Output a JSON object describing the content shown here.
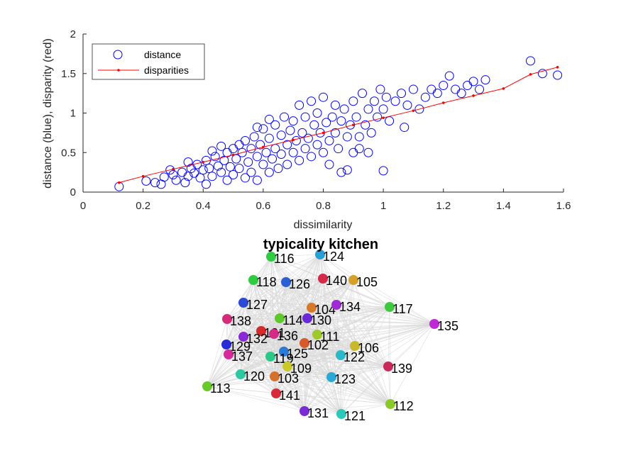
{
  "chart_data": [
    {
      "type": "scatter",
      "xlabel": "dissimilarity",
      "ylabel": "distance (blue), disparity (red)",
      "xlim": [
        0,
        1.6
      ],
      "ylim": [
        0,
        2
      ],
      "xticks": [
        "0",
        "0.2",
        "0.4",
        "0.6",
        "0.8",
        "1",
        "1.2",
        "1.4",
        "1.6"
      ],
      "yticks": [
        "0",
        "0.5",
        "1",
        "1.5",
        "2"
      ],
      "grid": false,
      "legend_position": "top-left",
      "series": [
        {
          "name": "distance",
          "color": "#0000ff",
          "marker": "open-circle",
          "points": [
            [
              0.12,
              0.07
            ],
            [
              0.21,
              0.14
            ],
            [
              0.24,
              0.12
            ],
            [
              0.26,
              0.1
            ],
            [
              0.27,
              0.19
            ],
            [
              0.29,
              0.28
            ],
            [
              0.3,
              0.22
            ],
            [
              0.31,
              0.15
            ],
            [
              0.33,
              0.25
            ],
            [
              0.34,
              0.12
            ],
            [
              0.35,
              0.2
            ],
            [
              0.36,
              0.3
            ],
            [
              0.37,
              0.24
            ],
            [
              0.38,
              0.35
            ],
            [
              0.39,
              0.18
            ],
            [
              0.4,
              0.28
            ],
            [
              0.41,
              0.1
            ],
            [
              0.41,
              0.4
            ],
            [
              0.42,
              0.3
            ],
            [
              0.43,
              0.2
            ],
            [
              0.43,
              0.52
            ],
            [
              0.44,
              0.45
            ],
            [
              0.45,
              0.33
            ],
            [
              0.46,
              0.25
            ],
            [
              0.47,
              0.4
            ],
            [
              0.48,
              0.5
            ],
            [
              0.48,
              0.15
            ],
            [
              0.49,
              0.32
            ],
            [
              0.5,
              0.55
            ],
            [
              0.5,
              0.22
            ],
            [
              0.51,
              0.42
            ],
            [
              0.52,
              0.6
            ],
            [
              0.52,
              0.3
            ],
            [
              0.53,
              0.5
            ],
            [
              0.54,
              0.18
            ],
            [
              0.54,
              0.65
            ],
            [
              0.55,
              0.38
            ],
            [
              0.56,
              0.55
            ],
            [
              0.56,
              0.25
            ],
            [
              0.57,
              0.7
            ],
            [
              0.58,
              0.45
            ],
            [
              0.58,
              0.15
            ],
            [
              0.59,
              0.6
            ],
            [
              0.6,
              0.35
            ],
            [
              0.6,
              0.8
            ],
            [
              0.61,
              0.5
            ],
            [
              0.62,
              0.25
            ],
            [
              0.62,
              0.68
            ],
            [
              0.63,
              0.42
            ],
            [
              0.64,
              0.85
            ],
            [
              0.64,
              0.55
            ],
            [
              0.65,
              0.3
            ],
            [
              0.66,
              0.72
            ],
            [
              0.66,
              0.48
            ],
            [
              0.67,
              0.95
            ],
            [
              0.68,
              0.6
            ],
            [
              0.68,
              0.35
            ],
            [
              0.69,
              0.78
            ],
            [
              0.7,
              0.5
            ],
            [
              0.7,
              0.9
            ],
            [
              0.71,
              0.65
            ],
            [
              0.72,
              0.4
            ],
            [
              0.72,
              1.1
            ],
            [
              0.73,
              0.75
            ],
            [
              0.74,
              0.55
            ],
            [
              0.74,
              0.95
            ],
            [
              0.75,
              0.68
            ],
            [
              0.76,
              0.45
            ],
            [
              0.76,
              1.15
            ],
            [
              0.77,
              0.85
            ],
            [
              0.78,
              0.6
            ],
            [
              0.78,
              1.0
            ],
            [
              0.79,
              0.75
            ],
            [
              0.8,
              0.5
            ],
            [
              0.8,
              1.2
            ],
            [
              0.81,
              0.88
            ],
            [
              0.82,
              0.65
            ],
            [
              0.82,
              0.35
            ],
            [
              0.83,
              0.95
            ],
            [
              0.84,
              0.75
            ],
            [
              0.84,
              1.1
            ],
            [
              0.85,
              0.55
            ],
            [
              0.86,
              0.9
            ],
            [
              0.86,
              0.25
            ],
            [
              0.87,
              1.05
            ],
            [
              0.88,
              0.7
            ],
            [
              0.89,
              0.85
            ],
            [
              0.9,
              0.5
            ],
            [
              0.9,
              1.15
            ],
            [
              0.91,
              0.95
            ],
            [
              0.92,
              0.7
            ],
            [
              0.93,
              1.25
            ],
            [
              0.94,
              0.85
            ],
            [
              0.95,
              1.05
            ],
            [
              0.96,
              0.75
            ],
            [
              0.97,
              1.15
            ],
            [
              0.98,
              0.95
            ],
            [
              0.99,
              1.3
            ],
            [
              1.0,
              1.05
            ],
            [
              1.0,
              0.27
            ],
            [
              1.01,
              1.2
            ],
            [
              1.02,
              0.9
            ],
            [
              1.04,
              1.15
            ],
            [
              1.06,
              1.25
            ],
            [
              1.08,
              1.1
            ],
            [
              1.1,
              1.3
            ],
            [
              1.12,
              1.05
            ],
            [
              1.14,
              1.2
            ],
            [
              1.16,
              1.3
            ],
            [
              1.18,
              1.25
            ],
            [
              1.2,
              1.35
            ],
            [
              1.22,
              1.47
            ],
            [
              1.24,
              1.3
            ],
            [
              1.26,
              1.25
            ],
            [
              1.28,
              1.35
            ],
            [
              1.3,
              1.4
            ],
            [
              1.32,
              1.3
            ],
            [
              1.34,
              1.42
            ],
            [
              1.49,
              1.66
            ],
            [
              1.53,
              1.5
            ],
            [
              1.58,
              1.48
            ],
            [
              1.07,
              0.82
            ],
            [
              0.95,
              0.5
            ],
            [
              0.88,
              0.28
            ],
            [
              0.92,
              0.55
            ],
            [
              0.46,
              0.58
            ],
            [
              0.35,
              0.38
            ],
            [
              0.58,
              0.82
            ],
            [
              0.62,
              0.92
            ]
          ]
        },
        {
          "name": "disparities",
          "color": "#ff0000",
          "marker": "line-dot",
          "points": [
            [
              0.12,
              0.12
            ],
            [
              0.2,
              0.2
            ],
            [
              0.3,
              0.29
            ],
            [
              0.4,
              0.38
            ],
            [
              0.5,
              0.47
            ],
            [
              0.6,
              0.57
            ],
            [
              0.7,
              0.66
            ],
            [
              0.8,
              0.75
            ],
            [
              0.9,
              0.85
            ],
            [
              1.0,
              0.94
            ],
            [
              1.1,
              1.03
            ],
            [
              1.2,
              1.13
            ],
            [
              1.3,
              1.22
            ],
            [
              1.4,
              1.31
            ],
            [
              1.49,
              1.49
            ],
            [
              1.58,
              1.58
            ]
          ]
        }
      ]
    },
    {
      "type": "network",
      "title": "typicality kitchen",
      "edge_color": "#d9d9d9",
      "nodes": [
        {
          "label": "116",
          "color": "#2ecc40"
        },
        {
          "label": "124",
          "color": "#2a9fd6"
        },
        {
          "label": "118",
          "color": "#2ecc40"
        },
        {
          "label": "126",
          "color": "#2a5fd6"
        },
        {
          "label": "140",
          "color": "#d62a4a"
        },
        {
          "label": "105",
          "color": "#d6a02a"
        },
        {
          "label": "127",
          "color": "#2a4ad6"
        },
        {
          "label": "104",
          "color": "#d67a2a"
        },
        {
          "label": "134",
          "color": "#a02ad6"
        },
        {
          "label": "117",
          "color": "#3ec93e"
        },
        {
          "label": "138",
          "color": "#d62a7a"
        },
        {
          "label": "114",
          "color": "#5ec92a"
        },
        {
          "label": "130",
          "color": "#6a2ad6"
        },
        {
          "label": "135",
          "color": "#c02ad6"
        },
        {
          "label": "101",
          "color": "#d62a2a"
        },
        {
          "label": "132",
          "color": "#8a2ad6"
        },
        {
          "label": "136",
          "color": "#d62a8a"
        },
        {
          "label": "111",
          "color": "#9ec92a"
        },
        {
          "label": "102",
          "color": "#d65a2a"
        },
        {
          "label": "129",
          "color": "#2a2ad6"
        },
        {
          "label": "125",
          "color": "#2a7ad6"
        },
        {
          "label": "106",
          "color": "#c9b92a"
        },
        {
          "label": "137",
          "color": "#d62a9a"
        },
        {
          "label": "119",
          "color": "#2ac98a"
        },
        {
          "label": "122",
          "color": "#2ab9c9"
        },
        {
          "label": "109",
          "color": "#c9c92a"
        },
        {
          "label": "139",
          "color": "#c92a5a"
        },
        {
          "label": "120",
          "color": "#2ac9a0"
        },
        {
          "label": "103",
          "color": "#d6702a"
        },
        {
          "label": "123",
          "color": "#2aa9d6"
        },
        {
          "label": "113",
          "color": "#6ac92a"
        },
        {
          "label": "141",
          "color": "#d62a3a"
        },
        {
          "label": "112",
          "color": "#8ac92a"
        },
        {
          "label": "131",
          "color": "#7a2ad6"
        },
        {
          "label": "121",
          "color": "#2ac9b9"
        }
      ]
    }
  ],
  "legend": {
    "distance_label": "distance",
    "disparities_label": "disparities"
  }
}
